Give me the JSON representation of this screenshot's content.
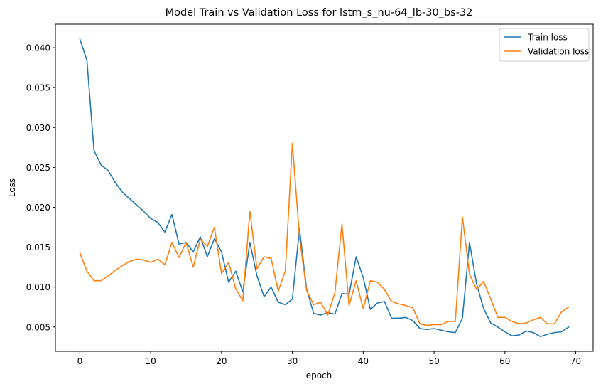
{
  "chart_data": {
    "type": "line",
    "title": "Model Train vs Validation Loss for lstm_s_nu-64_lb-30_bs-32",
    "xlabel": "epoch",
    "ylabel": "Loss",
    "xlim": [
      -3.45,
      72.45
    ],
    "ylim": [
      0.00195,
      0.04295
    ],
    "xticks": [
      0,
      10,
      20,
      30,
      40,
      50,
      60,
      70
    ],
    "yticks": [
      0.005,
      0.01,
      0.015,
      0.02,
      0.025,
      0.03,
      0.035,
      0.04
    ],
    "ytick_labels": [
      "0.005",
      "0.010",
      "0.015",
      "0.020",
      "0.025",
      "0.030",
      "0.035",
      "0.040"
    ],
    "grid": false,
    "legend_position": "top-right",
    "series": [
      {
        "name": "Train loss",
        "color": "#1f77b4",
        "values": [
          0.0411,
          0.0384,
          0.0271,
          0.0253,
          0.0246,
          0.0231,
          0.0219,
          0.0211,
          0.0203,
          0.0195,
          0.0186,
          0.0181,
          0.0169,
          0.0191,
          0.0154,
          0.0156,
          0.0144,
          0.0163,
          0.0138,
          0.0161,
          0.0144,
          0.0106,
          0.012,
          0.0094,
          0.0156,
          0.0114,
          0.0088,
          0.01,
          0.0081,
          0.0078,
          0.0085,
          0.0173,
          0.0098,
          0.0067,
          0.0065,
          0.0068,
          0.0066,
          0.0092,
          0.0091,
          0.0138,
          0.0112,
          0.0072,
          0.008,
          0.0082,
          0.0061,
          0.0061,
          0.0062,
          0.0058,
          0.0048,
          0.0047,
          0.0048,
          0.0046,
          0.0044,
          0.0043,
          0.0061,
          0.0156,
          0.0104,
          0.0073,
          0.0055,
          0.005,
          0.0044,
          0.0039,
          0.004,
          0.0045,
          0.0043,
          0.0038,
          0.0041,
          0.0043,
          0.0044,
          0.005
        ]
      },
      {
        "name": "Validation loss",
        "color": "#ff7f0e",
        "values": [
          0.0143,
          0.012,
          0.0108,
          0.0108,
          0.0114,
          0.0121,
          0.0127,
          0.0132,
          0.0135,
          0.0134,
          0.0131,
          0.0135,
          0.0128,
          0.0156,
          0.0137,
          0.0156,
          0.0125,
          0.016,
          0.0151,
          0.0175,
          0.0117,
          0.0131,
          0.0098,
          0.0083,
          0.0195,
          0.0123,
          0.0138,
          0.0136,
          0.0095,
          0.012,
          0.028,
          0.0163,
          0.0096,
          0.0078,
          0.0081,
          0.0065,
          0.0093,
          0.0179,
          0.0077,
          0.0108,
          0.0073,
          0.0108,
          0.0106,
          0.0097,
          0.0082,
          0.0079,
          0.0077,
          0.0074,
          0.0054,
          0.0052,
          0.0053,
          0.0053,
          0.0057,
          0.0057,
          0.0188,
          0.0116,
          0.0097,
          0.0107,
          0.0085,
          0.0062,
          0.0062,
          0.0057,
          0.0054,
          0.0055,
          0.0059,
          0.0062,
          0.0054,
          0.0054,
          0.0069,
          0.0075
        ]
      }
    ]
  }
}
